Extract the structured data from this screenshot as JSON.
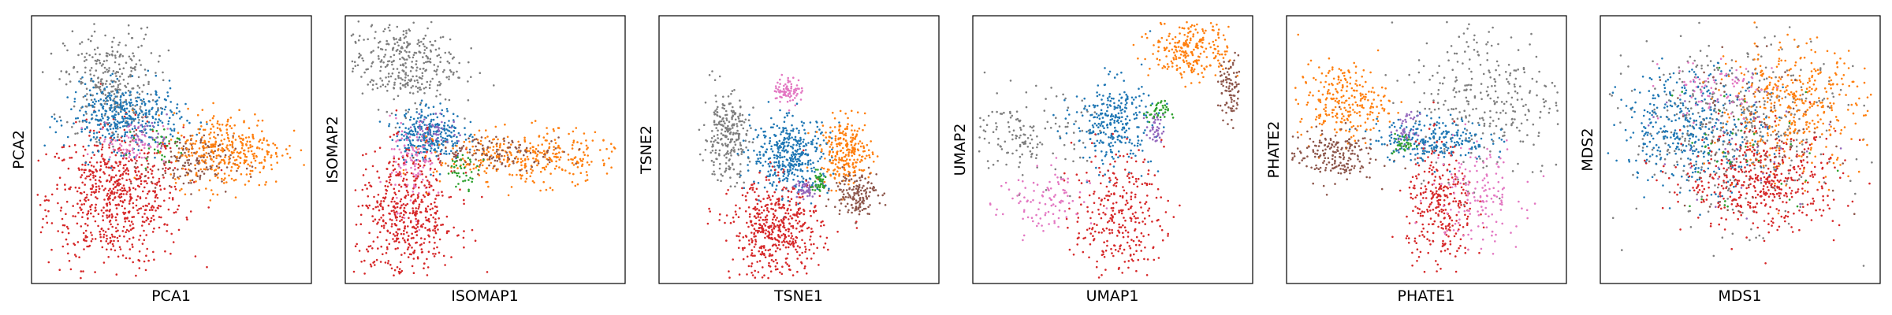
{
  "palette": {
    "blue": "#1f77b4",
    "orange": "#ff7f0e",
    "green": "#2ca02c",
    "red": "#d62728",
    "purple": "#9467bd",
    "brown": "#8c564b",
    "pink": "#e377c2",
    "gray": "#7f7f7f"
  },
  "chart_data": [
    {
      "type": "scatter",
      "title": "",
      "xlabel": "PCA1",
      "ylabel": "PCA2",
      "xticks": [],
      "yticks": [],
      "xlim": [
        0,
        1
      ],
      "ylim": [
        0,
        1
      ],
      "grid": false,
      "clusters": [
        {
          "color": "red",
          "center": [
            0.3,
            0.32
          ],
          "spread": [
            0.12,
            0.13
          ],
          "n": 700
        },
        {
          "color": "gray",
          "center": [
            0.28,
            0.75
          ],
          "spread": [
            0.08,
            0.1
          ],
          "n": 300
        },
        {
          "color": "blue",
          "center": [
            0.33,
            0.62
          ],
          "spread": [
            0.1,
            0.06
          ],
          "n": 400
        },
        {
          "color": "pink",
          "center": [
            0.36,
            0.53
          ],
          "spread": [
            0.06,
            0.04
          ],
          "n": 60
        },
        {
          "color": "brown",
          "center": [
            0.56,
            0.45
          ],
          "spread": [
            0.08,
            0.05
          ],
          "n": 150
        },
        {
          "color": "orange",
          "center": [
            0.7,
            0.5
          ],
          "spread": [
            0.1,
            0.07
          ],
          "n": 350
        },
        {
          "color": "green",
          "center": [
            0.45,
            0.52
          ],
          "spread": [
            0.04,
            0.03
          ],
          "n": 30
        },
        {
          "color": "purple",
          "center": [
            0.42,
            0.55
          ],
          "spread": [
            0.04,
            0.03
          ],
          "n": 30
        }
      ]
    },
    {
      "type": "scatter",
      "title": "",
      "xlabel": "ISOMAP1",
      "ylabel": "ISOMAP2",
      "xticks": [],
      "yticks": [],
      "xlim": [
        0,
        1
      ],
      "ylim": [
        0,
        1
      ],
      "grid": false,
      "clusters": [
        {
          "color": "gray",
          "center": [
            0.2,
            0.82
          ],
          "spread": [
            0.1,
            0.08
          ],
          "n": 350
        },
        {
          "color": "blue",
          "center": [
            0.3,
            0.56
          ],
          "spread": [
            0.06,
            0.05
          ],
          "n": 300
        },
        {
          "color": "pink",
          "center": [
            0.24,
            0.45
          ],
          "spread": [
            0.04,
            0.08
          ],
          "n": 120
        },
        {
          "color": "red",
          "center": [
            0.22,
            0.25
          ],
          "spread": [
            0.09,
            0.12
          ],
          "n": 500
        },
        {
          "color": "orange",
          "center": [
            0.65,
            0.47
          ],
          "spread": [
            0.16,
            0.05
          ],
          "n": 350
        },
        {
          "color": "brown",
          "center": [
            0.55,
            0.49
          ],
          "spread": [
            0.12,
            0.03
          ],
          "n": 120
        },
        {
          "color": "green",
          "center": [
            0.42,
            0.42
          ],
          "spread": [
            0.03,
            0.03
          ],
          "n": 40
        },
        {
          "color": "purple",
          "center": [
            0.32,
            0.58
          ],
          "spread": [
            0.04,
            0.03
          ],
          "n": 40
        }
      ]
    },
    {
      "type": "scatter",
      "title": "",
      "xlabel": "TSNE1",
      "ylabel": "TSNE2",
      "xticks": [],
      "yticks": [],
      "xlim": [
        0,
        1
      ],
      "ylim": [
        0,
        1
      ],
      "grid": false,
      "clusters": [
        {
          "color": "pink",
          "center": [
            0.46,
            0.72
          ],
          "spread": [
            0.025,
            0.025
          ],
          "n": 80
        },
        {
          "color": "gray",
          "center": [
            0.24,
            0.55
          ],
          "spread": [
            0.04,
            0.08
          ],
          "n": 250
        },
        {
          "color": "blue",
          "center": [
            0.47,
            0.48
          ],
          "spread": [
            0.07,
            0.07
          ],
          "n": 400
        },
        {
          "color": "red",
          "center": [
            0.42,
            0.2
          ],
          "spread": [
            0.08,
            0.09
          ],
          "n": 500
        },
        {
          "color": "orange",
          "center": [
            0.67,
            0.49
          ],
          "spread": [
            0.045,
            0.06
          ],
          "n": 250
        },
        {
          "color": "brown",
          "center": [
            0.7,
            0.34
          ],
          "spread": [
            0.04,
            0.04
          ],
          "n": 150
        },
        {
          "color": "purple",
          "center": [
            0.52,
            0.35
          ],
          "spread": [
            0.02,
            0.02
          ],
          "n": 50
        },
        {
          "color": "green",
          "center": [
            0.57,
            0.38
          ],
          "spread": [
            0.015,
            0.02
          ],
          "n": 40
        }
      ]
    },
    {
      "type": "scatter",
      "title": "",
      "xlabel": "UMAP1",
      "ylabel": "UMAP2",
      "xticks": [],
      "yticks": [],
      "xlim": [
        0,
        1
      ],
      "ylim": [
        0,
        1
      ],
      "grid": false,
      "clusters": [
        {
          "color": "gray",
          "center": [
            0.2,
            0.55
          ],
          "spread": [
            0.1,
            0.08
          ],
          "n": 150
        },
        {
          "color": "blue",
          "center": [
            0.5,
            0.6
          ],
          "spread": [
            0.07,
            0.08
          ],
          "n": 300
        },
        {
          "color": "red",
          "center": [
            0.52,
            0.25
          ],
          "spread": [
            0.08,
            0.12
          ],
          "n": 300
        },
        {
          "color": "orange",
          "center": [
            0.78,
            0.88
          ],
          "spread": [
            0.07,
            0.06
          ],
          "n": 250
        },
        {
          "color": "brown",
          "center": [
            0.92,
            0.72
          ],
          "spread": [
            0.02,
            0.06
          ],
          "n": 90
        },
        {
          "color": "pink",
          "center": [
            0.25,
            0.3
          ],
          "spread": [
            0.08,
            0.07
          ],
          "n": 100
        },
        {
          "color": "green",
          "center": [
            0.66,
            0.64
          ],
          "spread": [
            0.02,
            0.02
          ],
          "n": 40
        },
        {
          "color": "purple",
          "center": [
            0.65,
            0.57
          ],
          "spread": [
            0.015,
            0.03
          ],
          "n": 40
        }
      ]
    },
    {
      "type": "scatter",
      "title": "",
      "xlabel": "PHATE1",
      "ylabel": "PHATE2",
      "xticks": [],
      "yticks": [],
      "xlim": [
        0,
        1
      ],
      "ylim": [
        0,
        1
      ],
      "grid": false,
      "clusters": [
        {
          "color": "gray",
          "center": [
            0.72,
            0.7
          ],
          "spread": [
            0.14,
            0.15
          ],
          "n": 300
        },
        {
          "color": "orange",
          "center": [
            0.2,
            0.68
          ],
          "spread": [
            0.08,
            0.07
          ],
          "n": 250
        },
        {
          "color": "brown",
          "center": [
            0.16,
            0.48
          ],
          "spread": [
            0.08,
            0.05
          ],
          "n": 200
        },
        {
          "color": "blue",
          "center": [
            0.52,
            0.54
          ],
          "spread": [
            0.1,
            0.04
          ],
          "n": 250
        },
        {
          "color": "red",
          "center": [
            0.55,
            0.28
          ],
          "spread": [
            0.06,
            0.12
          ],
          "n": 300
        },
        {
          "color": "pink",
          "center": [
            0.68,
            0.34
          ],
          "spread": [
            0.08,
            0.1
          ],
          "n": 150
        },
        {
          "color": "purple",
          "center": [
            0.43,
            0.57
          ],
          "spread": [
            0.02,
            0.03
          ],
          "n": 40
        },
        {
          "color": "green",
          "center": [
            0.42,
            0.52
          ],
          "spread": [
            0.02,
            0.02
          ],
          "n": 30
        }
      ]
    },
    {
      "type": "scatter",
      "title": "",
      "xlabel": "MDS1",
      "ylabel": "MDS2",
      "xticks": [],
      "yticks": [],
      "xlim": [
        0,
        1
      ],
      "ylim": [
        0,
        1
      ],
      "grid": false,
      "clusters": [
        {
          "color": "gray",
          "center": [
            0.48,
            0.58
          ],
          "spread": [
            0.18,
            0.17
          ],
          "n": 450
        },
        {
          "color": "blue",
          "center": [
            0.33,
            0.58
          ],
          "spread": [
            0.13,
            0.11
          ],
          "n": 400
        },
        {
          "color": "orange",
          "center": [
            0.68,
            0.66
          ],
          "spread": [
            0.13,
            0.12
          ],
          "n": 400
        },
        {
          "color": "red",
          "center": [
            0.58,
            0.38
          ],
          "spread": [
            0.14,
            0.09
          ],
          "n": 450
        },
        {
          "color": "pink",
          "center": [
            0.42,
            0.72
          ],
          "spread": [
            0.1,
            0.06
          ],
          "n": 80
        },
        {
          "color": "brown",
          "center": [
            0.55,
            0.55
          ],
          "spread": [
            0.15,
            0.14
          ],
          "n": 80
        },
        {
          "color": "green",
          "center": [
            0.5,
            0.5
          ],
          "spread": [
            0.16,
            0.14
          ],
          "n": 40
        },
        {
          "color": "purple",
          "center": [
            0.5,
            0.55
          ],
          "spread": [
            0.16,
            0.14
          ],
          "n": 40
        }
      ]
    }
  ]
}
